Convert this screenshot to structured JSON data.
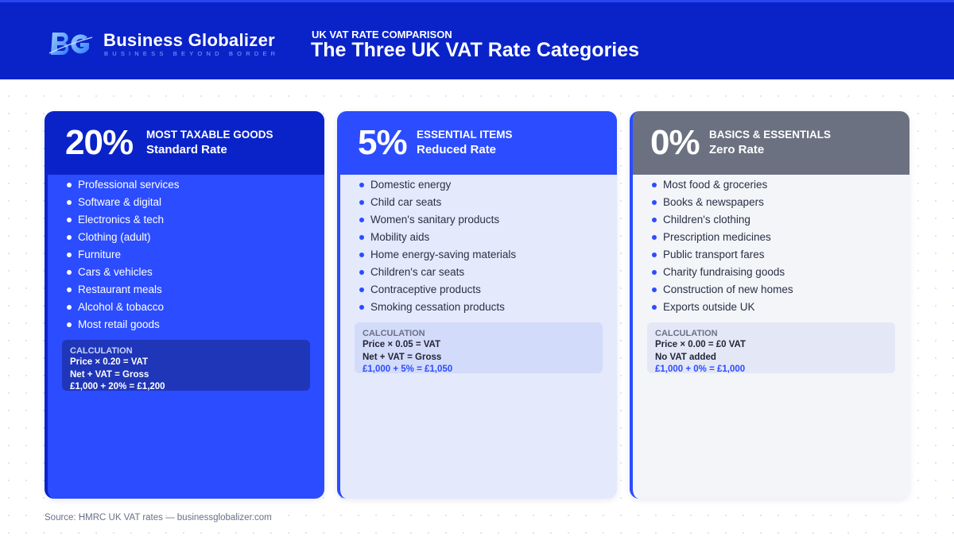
{
  "brand": {
    "logo_mark_icon": "bg-monogram-logo",
    "name": "Business Globalizer",
    "tagline": "BUSINESS BEYOND BORDER"
  },
  "header": {
    "kicker": "UK VAT RATE COMPARISON",
    "title": "The Three UK VAT Rate Categories"
  },
  "colors": {
    "header_bg": "#0a23c8",
    "accent_blue": "#2b4cff",
    "zero_rate_grey": "#6b7180"
  },
  "cards": [
    {
      "percent": "20%",
      "category": "MOST TAXABLE GOODS",
      "rate_name": "Standard Rate",
      "items": [
        "Professional services",
        "Software & digital",
        "Electronics & tech",
        "Clothing (adult)",
        "Furniture",
        "Cars & vehicles",
        "Restaurant meals",
        "Alcohol & tobacco",
        "Most retail goods"
      ],
      "calc": {
        "label": "CALCULATION",
        "line1": "Price × 0.20 = VAT",
        "line2": "Net + VAT = Gross",
        "example": "£1,000 + 20% = £1,200"
      }
    },
    {
      "percent": "5%",
      "category": "ESSENTIAL ITEMS",
      "rate_name": "Reduced Rate",
      "items": [
        "Domestic energy",
        "Child car seats",
        "Women's sanitary products",
        "Mobility aids",
        "Home energy-saving materials",
        "Children's car seats",
        "Contraceptive products",
        "Smoking cessation products"
      ],
      "calc": {
        "label": "CALCULATION",
        "line1": "Price × 0.05 = VAT",
        "line2": "Net + VAT = Gross",
        "example": "£1,000 + 5% = £1,050"
      }
    },
    {
      "percent": "0%",
      "category": "BASICS & ESSENTIALS",
      "rate_name": "Zero Rate",
      "items": [
        "Most food & groceries",
        "Books & newspapers",
        "Children's clothing",
        "Prescription medicines",
        "Public transport fares",
        "Charity fundraising goods",
        "Construction of new homes",
        "Exports outside UK"
      ],
      "calc": {
        "label": "CALCULATION",
        "line1": "Price × 0.00 = £0 VAT",
        "line2": "No VAT added",
        "example": "£1,000 + 0% = £1,000"
      }
    }
  ],
  "footer": {
    "source": "Source: HMRC UK VAT rates — businessglobalizer.com"
  }
}
